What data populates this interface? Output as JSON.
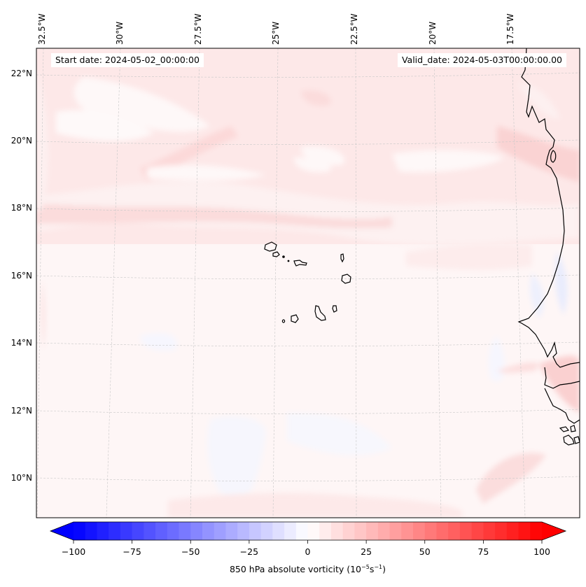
{
  "map": {
    "projection_note": "Lambert-style map of eastern tropical Atlantic / West African coast",
    "start_date": "Start date: 2024-05-02_00:00:00",
    "valid_date": "Valid_date: 2024-05-03T00:00:00.00",
    "longitude_labels": [
      "32.5°W",
      "30°W",
      "27.5°W",
      "25°W",
      "22.5°W",
      "20°W",
      "17.5°W"
    ],
    "latitude_labels": [
      "22°N",
      "20°N",
      "18°N",
      "16°N",
      "14°N",
      "12°N",
      "10°N"
    ],
    "field_description": "Weak mostly positive vorticity (0–15) with a band of higher values near 18–19°N and along the West African coast; slight negative values south of Cape Verde and off Senegal."
  },
  "colorbar": {
    "label_prefix": "850 hPa absolute vorticity (10",
    "label_exp1": "−5",
    "label_mid": "s",
    "label_exp2": "−1",
    "label_suffix": ")",
    "min": -100,
    "max": 100,
    "step": 5,
    "extend": "both",
    "colormap": "bwr",
    "ticks": [
      "−100",
      "−75",
      "−50",
      "−25",
      "0",
      "25",
      "50",
      "75",
      "100"
    ],
    "tick_values": [
      -100,
      -75,
      -50,
      -25,
      0,
      25,
      50,
      75,
      100
    ],
    "low_color": "#0000ff",
    "mid_color": "#ffffff",
    "high_color": "#ff0000"
  }
}
